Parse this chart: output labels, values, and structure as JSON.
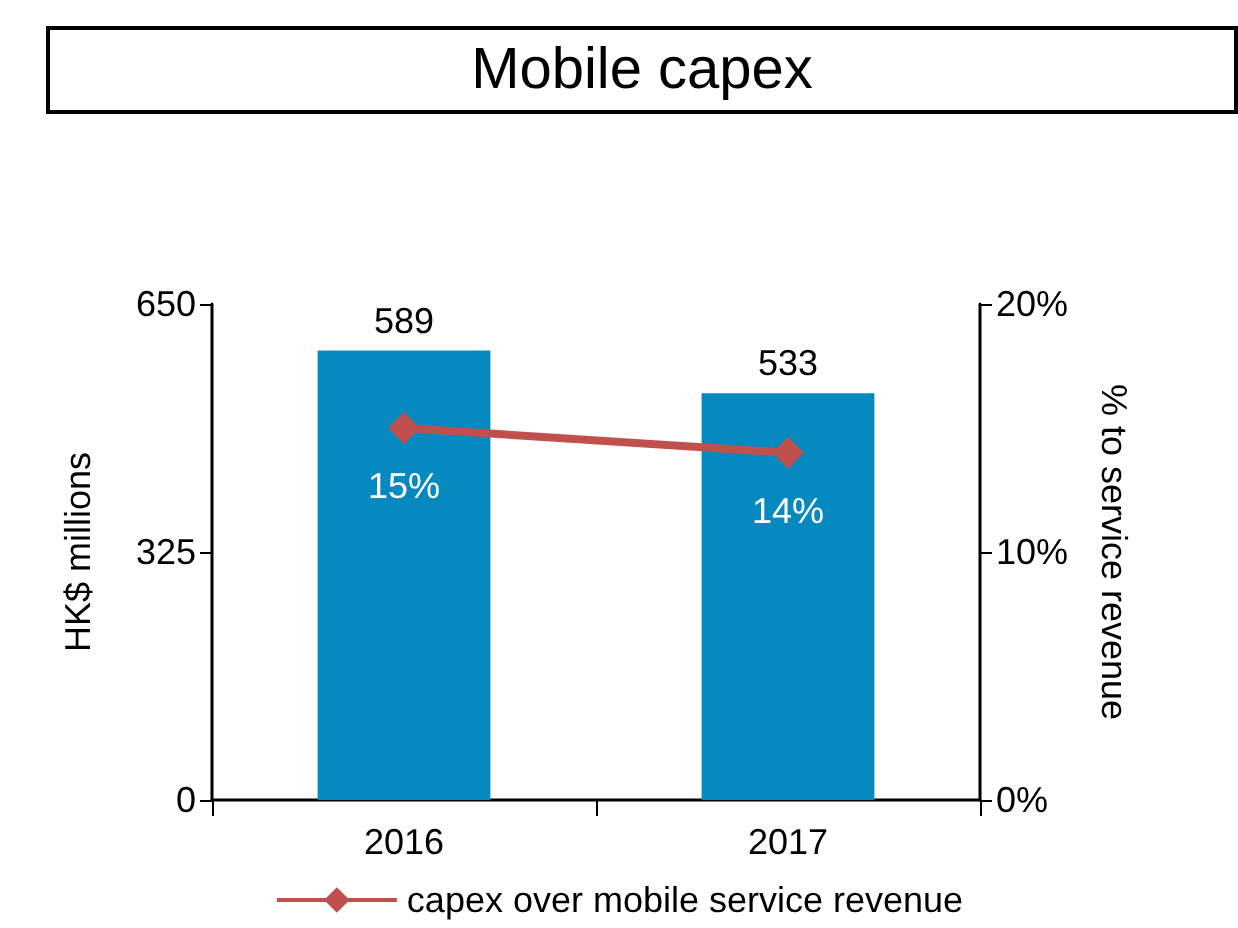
{
  "chart_data": {
    "type": "bar",
    "title": "Mobile capex",
    "categories": [
      "2016",
      "2017"
    ],
    "ylabel": "HK$ millions",
    "y2label": "% to service revenue",
    "series": [
      {
        "color": "#0689bf",
        "values": [
          589,
          533
        ],
        "value_labels": [
          "589",
          "533"
        ]
      },
      {
        "type": "line",
        "axis": "y2",
        "name": "capex over mobile service revenue",
        "color": "#c0504d",
        "values": [
          15,
          14
        ],
        "value_labels": [
          "15%",
          "14%"
        ]
      }
    ],
    "ylim": [
      0,
      650
    ],
    "yticks": [
      0,
      325,
      650
    ],
    "y2lim": [
      0,
      20
    ],
    "y2ticks": [
      {
        "value": 0,
        "label": "0%"
      },
      {
        "value": 10,
        "label": "10%"
      },
      {
        "value": 20,
        "label": "20%"
      }
    ],
    "marker": "diamond",
    "line_style": "solid",
    "grid": false,
    "legend": "bottom"
  }
}
